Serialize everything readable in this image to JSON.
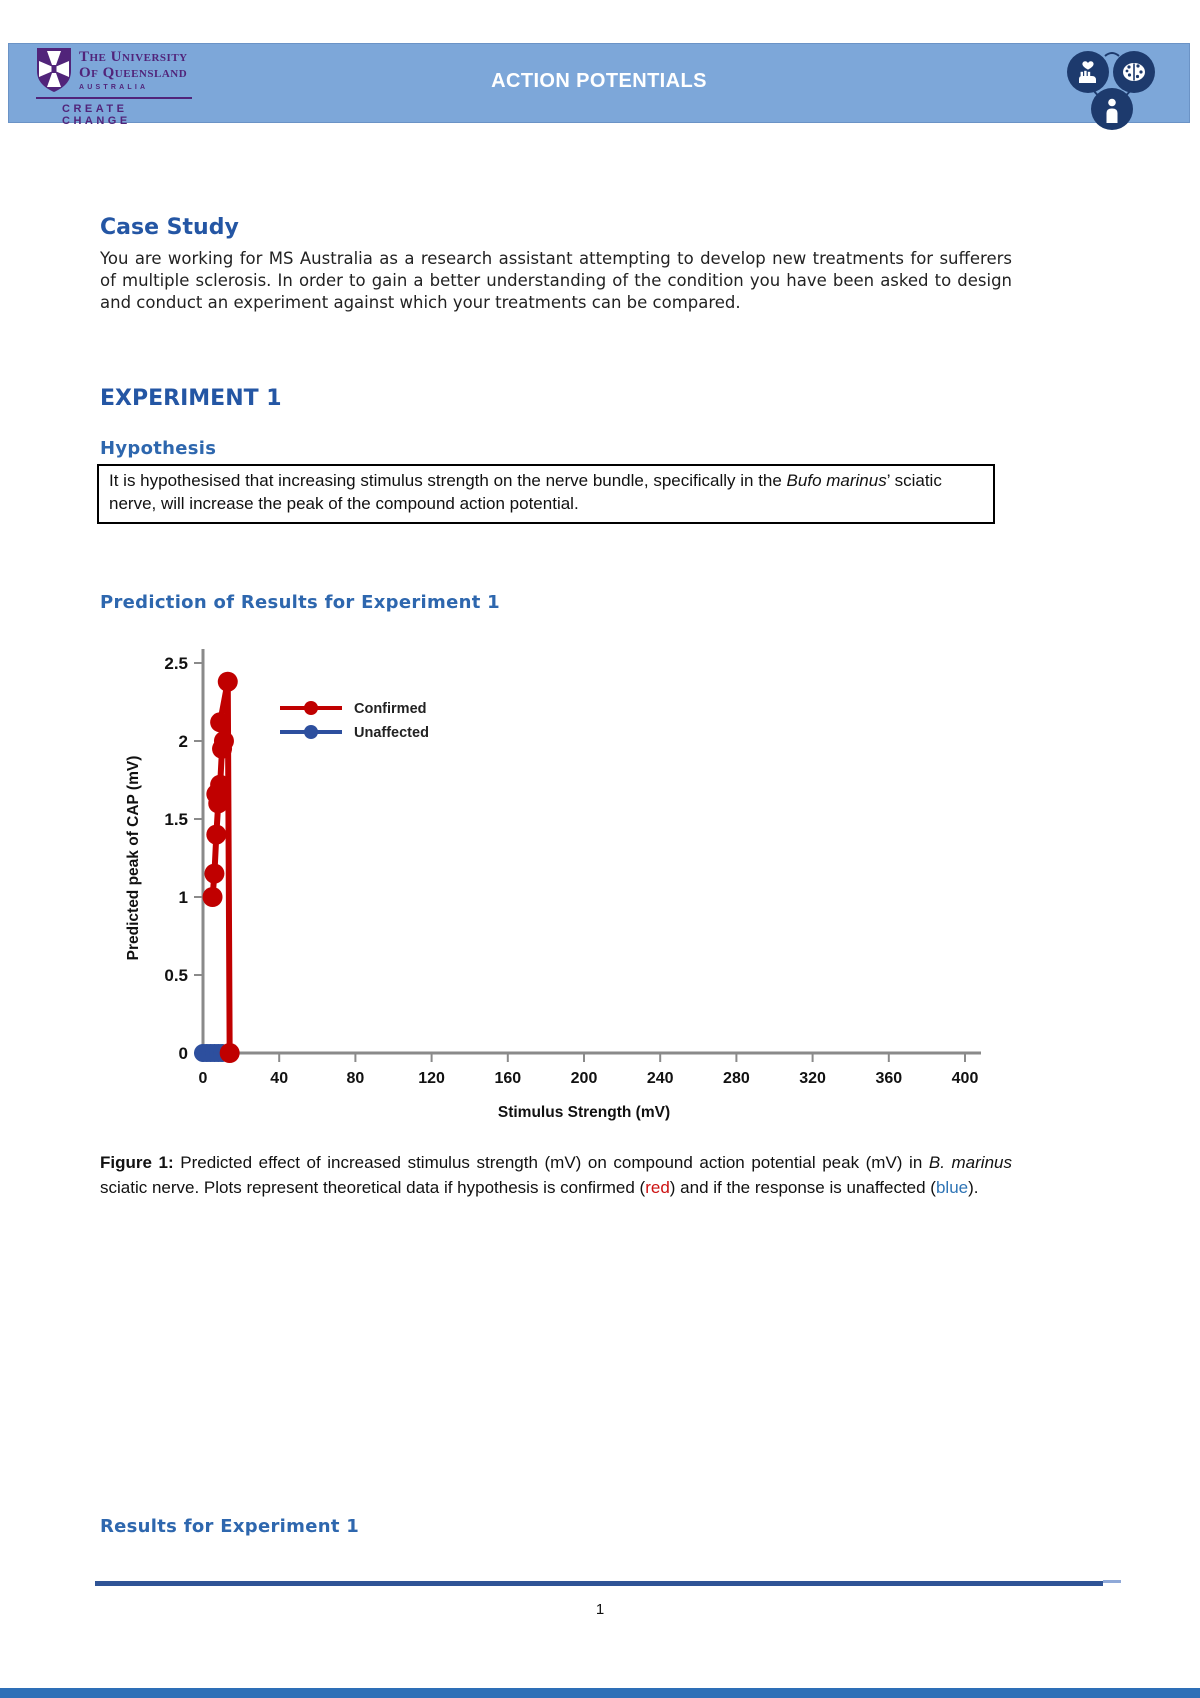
{
  "header": {
    "title": "ACTION POTENTIALS",
    "banner_color": "#7da7d9",
    "uq": {
      "line1": "The University",
      "line2": "Of Queensland",
      "country": "AUSTRALIA",
      "tagline": "CREATE CHANGE",
      "purple": "#51247A"
    },
    "triad": {
      "circle_color": "#1d3a6d",
      "icons": [
        "hand-heart-icon",
        "brain-icon",
        "person-icon"
      ]
    }
  },
  "sections": {
    "case_study": {
      "heading": "Case Study",
      "body": "You are working for MS Australia as a research assistant attempting to develop new treatments for sufferers of multiple sclerosis. In order to gain a better understanding of the condition you have been asked to design and conduct an experiment against which your treatments can be compared."
    },
    "experiment1": {
      "heading": "EXPERIMENT 1"
    },
    "hypothesis": {
      "heading": "Hypothesis",
      "prefix": "It is hypothesised that increasing stimulus strength on the nerve bundle, specifically in the ",
      "italic": "Bufo marinus",
      "suffix": "’ sciatic nerve, will increase the peak of the compound action potential."
    },
    "prediction": {
      "heading": "Prediction of Results for Experiment 1"
    },
    "figure": {
      "label": "Figure 1:",
      "p1": " Predicted effect of increased stimulus strength (mV) on compound action potential peak (mV) in ",
      "species": "B. marinus",
      "p2": " sciatic nerve. Plots represent theoretical data if hypothesis is confirmed (",
      "red_word": "red",
      "p3": ") and if the response is unaffected (",
      "blue_word": "blue",
      "p4": ")."
    },
    "results": {
      "heading": "Results for Experiment 1"
    }
  },
  "footer": {
    "page_number": "1"
  },
  "chart_data": {
    "type": "line",
    "title": "",
    "xlabel": "Stimulus Strength (mV)",
    "ylabel": "Predicted peak of CAP (mV)",
    "xlim": [
      0,
      400
    ],
    "ylim": [
      0,
      2.5
    ],
    "xtick_step": 40,
    "ytick_step": 0.5,
    "grid": false,
    "legend_position": "upper-left-inside",
    "axis_color": "#8a8a8a",
    "series": [
      {
        "name": "Confirmed",
        "color": "#C00000",
        "marker": "circle",
        "marker_r": 10,
        "points": [
          [
            5,
            1.0
          ],
          [
            6,
            1.15
          ],
          [
            7,
            1.4
          ],
          [
            8,
            1.6
          ],
          [
            7,
            1.66
          ],
          [
            9,
            1.72
          ],
          [
            10,
            1.95
          ],
          [
            11,
            2.0
          ],
          [
            9,
            2.12
          ],
          [
            13,
            2.38
          ],
          [
            14,
            0
          ]
        ]
      },
      {
        "name": "Unaffected",
        "color": "#2d4f9e",
        "marker": "circle",
        "marker_r": 9,
        "points": [
          [
            0,
            0
          ],
          [
            2,
            0
          ],
          [
            4,
            0
          ],
          [
            6,
            0
          ],
          [
            8,
            0
          ],
          [
            10,
            0
          ]
        ]
      }
    ]
  }
}
